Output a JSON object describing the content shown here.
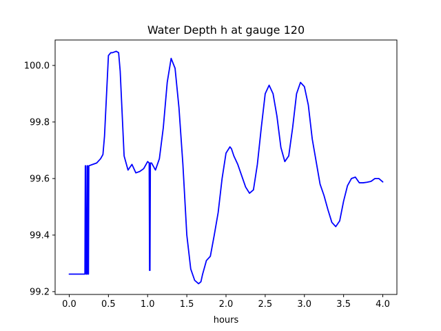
{
  "chart_data": {
    "type": "line",
    "title": "Water Depth h at gauge 120",
    "xlabel": "hours",
    "ylabel": "",
    "xlim": [
      -0.18,
      4.18
    ],
    "ylim": [
      99.19,
      100.09
    ],
    "xticks": [
      0.0,
      0.5,
      1.0,
      1.5,
      2.0,
      2.5,
      3.0,
      3.5,
      4.0
    ],
    "xtick_labels": [
      "0.0",
      "0.5",
      "1.0",
      "1.5",
      "2.0",
      "2.5",
      "3.0",
      "3.5",
      "4.0"
    ],
    "yticks": [
      99.2,
      99.4,
      99.6,
      99.8,
      100.0
    ],
    "ytick_labels": [
      "99.2",
      "99.4",
      "99.6",
      "99.8",
      "100.0"
    ],
    "grid": false,
    "legend": "none",
    "series": [
      {
        "color": "#0000ff",
        "x": [
          0.0,
          0.2,
          0.205,
          0.21,
          0.215,
          0.225,
          0.23,
          0.235,
          0.24,
          0.245,
          0.25,
          0.3,
          0.35,
          0.4,
          0.43,
          0.45,
          0.5,
          0.53,
          0.55,
          0.6,
          0.63,
          0.65,
          0.7,
          0.75,
          0.8,
          0.85,
          0.9,
          0.95,
          1.0,
          1.02,
          1.025,
          1.03,
          1.035,
          1.05,
          1.08,
          1.1,
          1.15,
          1.2,
          1.25,
          1.3,
          1.35,
          1.4,
          1.45,
          1.5,
          1.55,
          1.6,
          1.65,
          1.68,
          1.7,
          1.75,
          1.8,
          1.85,
          1.9,
          1.95,
          2.0,
          2.05,
          2.07,
          2.1,
          2.15,
          2.2,
          2.25,
          2.3,
          2.35,
          2.4,
          2.45,
          2.5,
          2.55,
          2.6,
          2.65,
          2.7,
          2.75,
          2.8,
          2.85,
          2.9,
          2.95,
          3.0,
          3.05,
          3.1,
          3.15,
          3.2,
          3.25,
          3.3,
          3.35,
          3.4,
          3.45,
          3.5,
          3.55,
          3.6,
          3.65,
          3.7,
          3.75,
          3.8,
          3.85,
          3.9,
          3.95,
          4.0
        ],
        "y": [
          99.262,
          99.262,
          99.645,
          99.645,
          99.262,
          99.262,
          99.645,
          99.645,
          99.262,
          99.262,
          99.645,
          99.65,
          99.655,
          99.67,
          99.685,
          99.75,
          100.035,
          100.045,
          100.045,
          100.05,
          100.045,
          99.98,
          99.68,
          99.63,
          99.65,
          99.62,
          99.625,
          99.635,
          99.66,
          99.655,
          99.275,
          99.275,
          99.655,
          99.655,
          99.64,
          99.63,
          99.67,
          99.78,
          99.94,
          100.025,
          99.99,
          99.85,
          99.65,
          99.4,
          99.28,
          99.24,
          99.228,
          99.235,
          99.26,
          99.31,
          99.325,
          99.4,
          99.48,
          99.6,
          99.69,
          99.712,
          99.705,
          99.68,
          99.65,
          99.61,
          99.57,
          99.548,
          99.56,
          99.65,
          99.78,
          99.9,
          99.93,
          99.9,
          99.82,
          99.71,
          99.66,
          99.68,
          99.78,
          99.9,
          99.94,
          99.925,
          99.86,
          99.74,
          99.66,
          99.58,
          99.54,
          99.49,
          99.445,
          99.43,
          99.45,
          99.52,
          99.575,
          99.6,
          99.605,
          99.585,
          99.585,
          99.587,
          99.59,
          99.6,
          99.6,
          99.588
        ]
      }
    ]
  }
}
